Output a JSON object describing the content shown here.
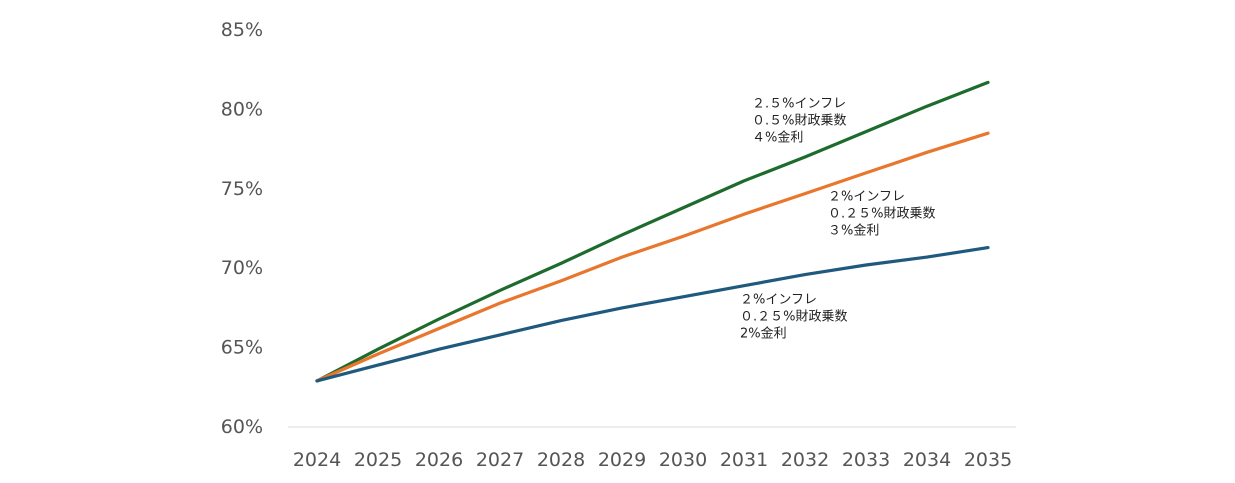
{
  "chart_data": {
    "type": "line",
    "title": "",
    "xlabel": "",
    "ylabel": "",
    "x": [
      "2024",
      "2025",
      "2026",
      "2027",
      "2028",
      "2029",
      "2030",
      "2031",
      "2032",
      "2033",
      "2034",
      "2035"
    ],
    "ylim": [
      60,
      85
    ],
    "yticks": [
      "85%",
      "80%",
      "75%",
      "70%",
      "65%",
      "60%"
    ],
    "ytick_values": [
      85,
      80,
      75,
      70,
      65,
      60
    ],
    "grid": false,
    "series": [
      {
        "color": "#1e6b2e",
        "values": [
          62.9,
          64.9,
          66.8,
          68.6,
          70.3,
          72.1,
          73.8,
          75.5,
          77.0,
          78.6,
          80.2,
          81.7
        ]
      },
      {
        "color": "#e8762c",
        "values": [
          62.9,
          64.6,
          66.2,
          67.8,
          69.2,
          70.7,
          72.0,
          73.4,
          74.7,
          76.0,
          77.3,
          78.5
        ]
      },
      {
        "color": "#1f5a7e",
        "values": [
          62.9,
          63.9,
          64.9,
          65.8,
          66.7,
          67.5,
          68.2,
          68.9,
          69.6,
          70.2,
          70.7,
          71.3
        ]
      }
    ],
    "annotations": [
      {
        "lines": [
          "２.５%インフレ",
          "０.５%財政乗数",
          "４%金利"
        ]
      },
      {
        "lines": [
          "２%インフレ",
          "０.２５%財政乗数",
          "３%金利"
        ]
      },
      {
        "lines": [
          "２%インフレ",
          "０.２５%財政乗数",
          "2%金利"
        ]
      }
    ]
  }
}
